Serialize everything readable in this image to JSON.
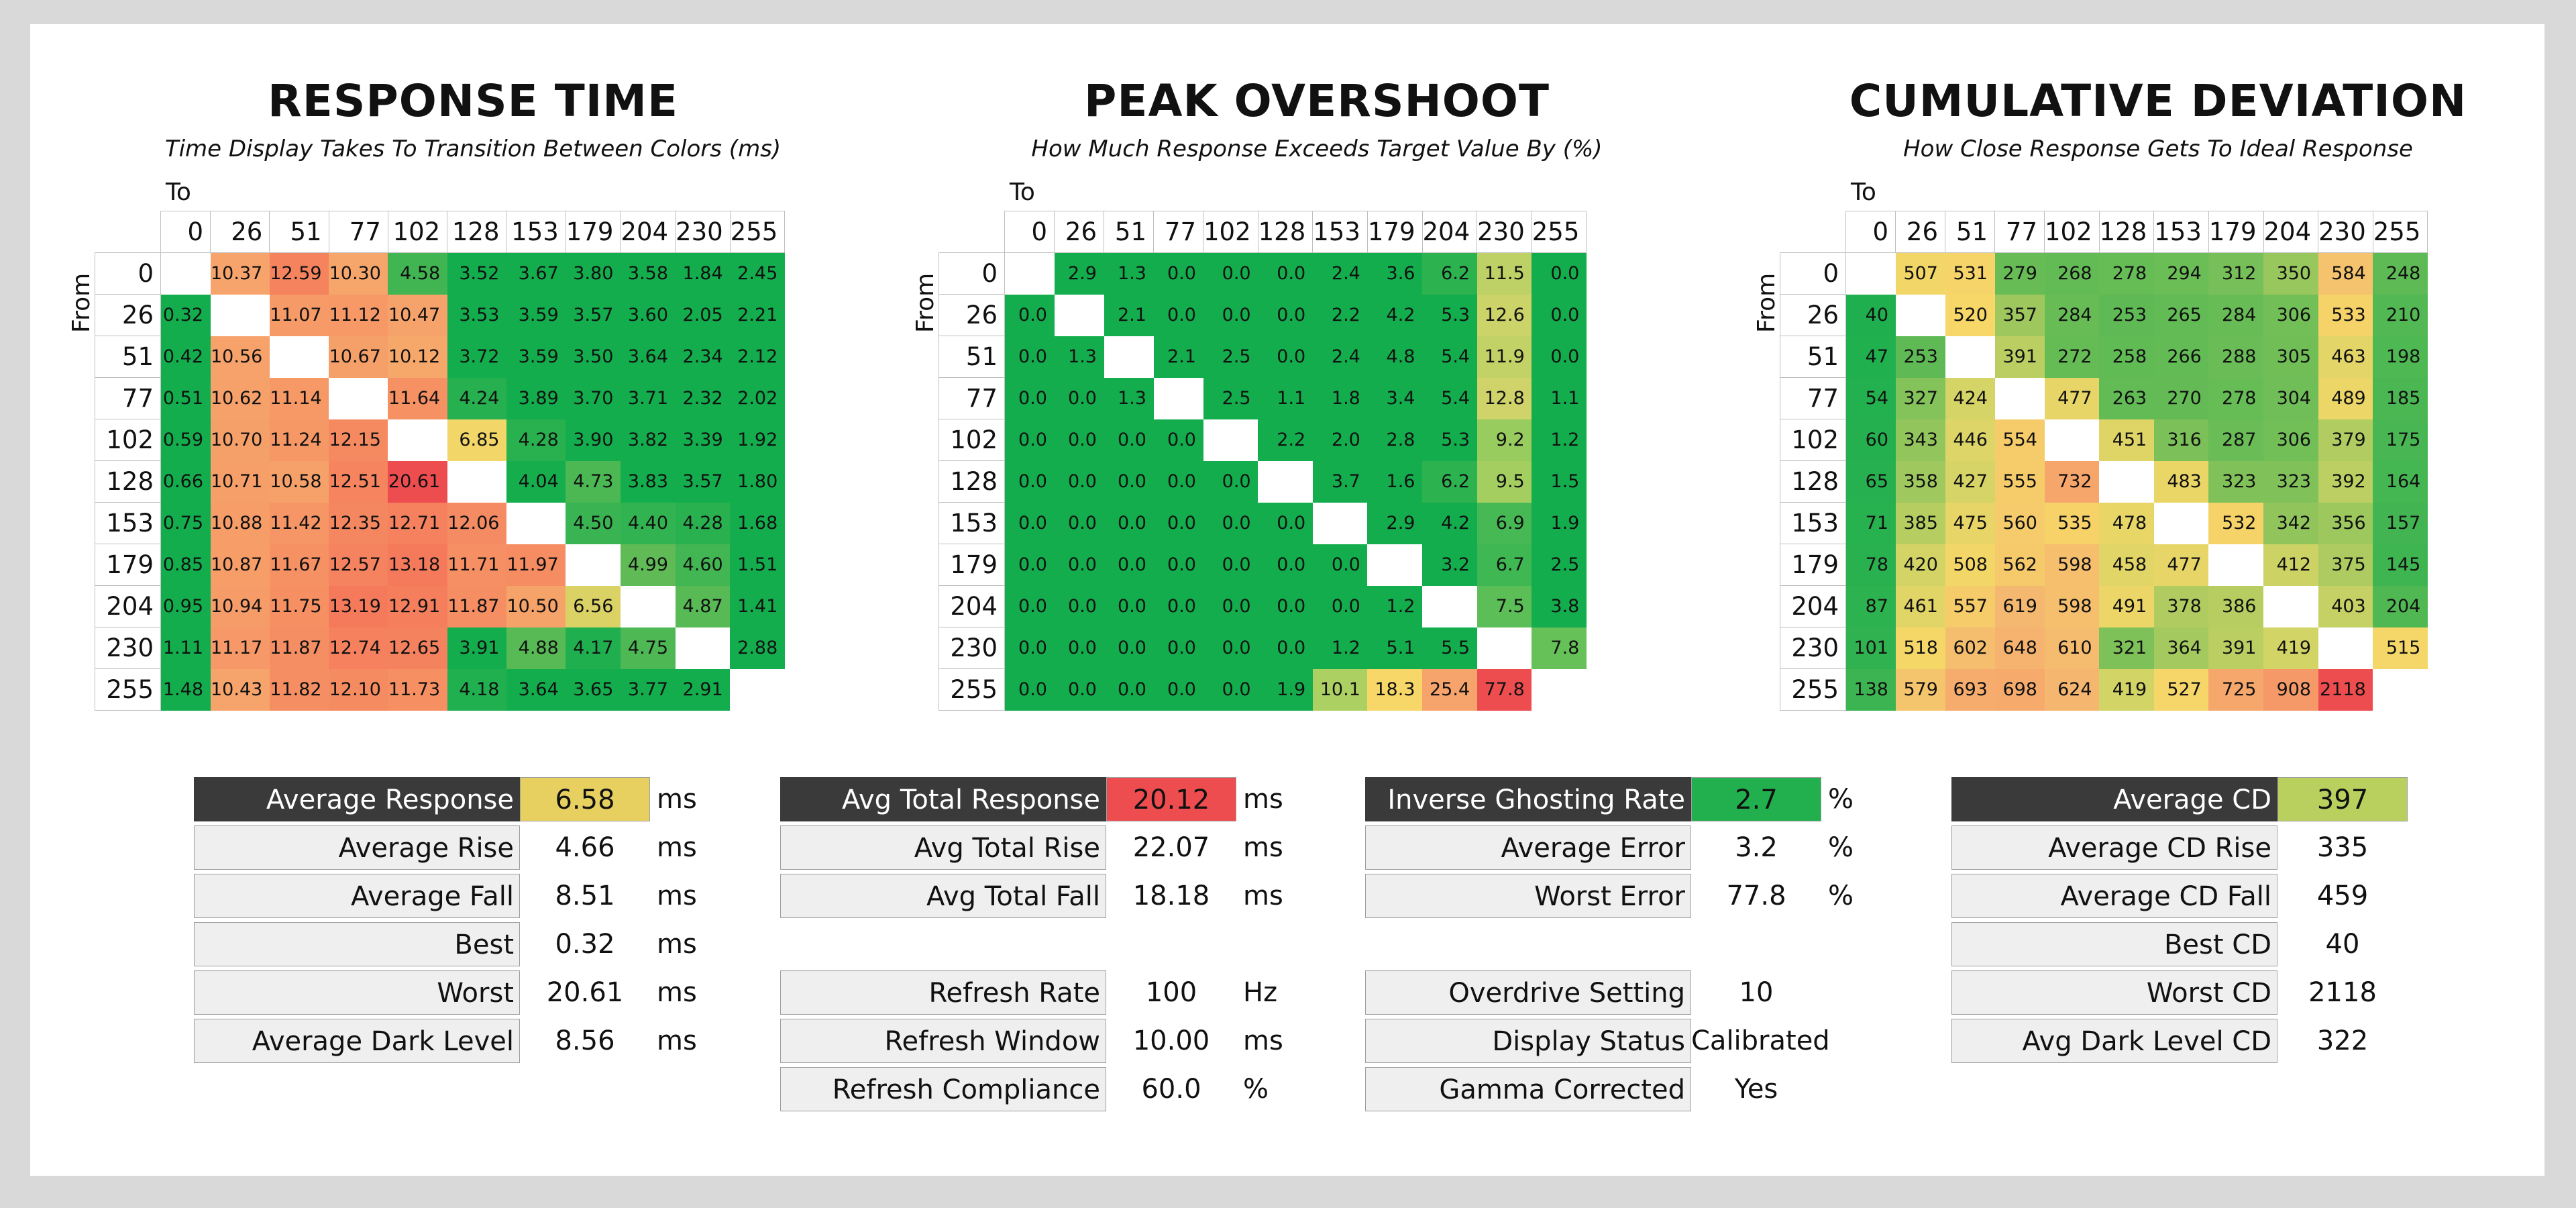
{
  "colors": {
    "green": "#13ad4d",
    "light_green": "#a4cf60",
    "yellow": "#f6d768",
    "orange": "#f6a46b",
    "red": "#ee4d50",
    "dark_label": "#3a3a3a"
  },
  "axis": {
    "to_label": "To",
    "from_label": "From",
    "levels": [
      "0",
      "26",
      "51",
      "77",
      "102",
      "128",
      "153",
      "179",
      "204",
      "230",
      "255"
    ]
  },
  "panels": [
    {
      "id": "response",
      "title": "RESPONSE TIME",
      "subtitle": "Time Display Takes To Transition Between Colors (ms)",
      "matrix": [
        [
          "",
          "10.37",
          "12.59",
          "10.30",
          "4.58",
          "3.52",
          "3.67",
          "3.80",
          "3.58",
          "1.84",
          "2.45"
        ],
        [
          "0.32",
          "",
          "11.07",
          "11.12",
          "10.47",
          "3.53",
          "3.59",
          "3.57",
          "3.60",
          "2.05",
          "2.21"
        ],
        [
          "0.42",
          "10.56",
          "",
          "10.67",
          "10.12",
          "3.72",
          "3.59",
          "3.50",
          "3.64",
          "2.34",
          "2.12"
        ],
        [
          "0.51",
          "10.62",
          "11.14",
          "",
          "11.64",
          "4.24",
          "3.89",
          "3.70",
          "3.71",
          "2.32",
          "2.02"
        ],
        [
          "0.59",
          "10.70",
          "11.24",
          "12.15",
          "",
          "6.85",
          "4.28",
          "3.90",
          "3.82",
          "3.39",
          "1.92"
        ],
        [
          "0.66",
          "10.71",
          "10.58",
          "12.51",
          "20.61",
          "",
          "4.04",
          "4.73",
          "3.83",
          "3.57",
          "1.80"
        ],
        [
          "0.75",
          "10.88",
          "11.42",
          "12.35",
          "12.71",
          "12.06",
          "",
          "4.50",
          "4.40",
          "4.28",
          "1.68"
        ],
        [
          "0.85",
          "10.87",
          "11.67",
          "12.57",
          "13.18",
          "11.71",
          "11.97",
          "",
          "4.99",
          "4.60",
          "1.51"
        ],
        [
          "0.95",
          "10.94",
          "11.75",
          "13.19",
          "12.91",
          "11.87",
          "10.50",
          "6.56",
          "",
          "4.87",
          "1.41"
        ],
        [
          "1.11",
          "11.17",
          "11.87",
          "12.74",
          "12.65",
          "3.91",
          "4.88",
          "4.17",
          "4.75",
          "",
          "2.88"
        ],
        [
          "1.48",
          "10.43",
          "11.82",
          "12.10",
          "11.73",
          "4.18",
          "3.64",
          "3.65",
          "3.77",
          "2.91",
          ""
        ]
      ],
      "stats": [
        {
          "label": "Average Response",
          "value": "6.58",
          "unit": "ms",
          "primary": true,
          "color": "#e7d060"
        },
        {
          "label": "Average Rise",
          "value": "4.66",
          "unit": "ms"
        },
        {
          "label": "Average Fall",
          "value": "8.51",
          "unit": "ms"
        },
        {
          "label": "Best",
          "value": "0.32",
          "unit": "ms"
        },
        {
          "label": "Worst",
          "value": "20.61",
          "unit": "ms"
        },
        {
          "label": "Average Dark Level",
          "value": "8.56",
          "unit": "ms"
        }
      ]
    },
    {
      "id": "overshoot",
      "title": "PEAK OVERSHOOT",
      "subtitle": "How Much Response Exceeds Target Value By (%)",
      "matrix": [
        [
          "",
          "2.9",
          "1.3",
          "0.0",
          "0.0",
          "0.0",
          "2.4",
          "3.6",
          "6.2",
          "11.5",
          "0.0"
        ],
        [
          "0.0",
          "",
          "2.1",
          "0.0",
          "0.0",
          "0.0",
          "2.2",
          "4.2",
          "5.3",
          "12.6",
          "0.0"
        ],
        [
          "0.0",
          "1.3",
          "",
          "2.1",
          "2.5",
          "0.0",
          "2.4",
          "4.8",
          "5.4",
          "11.9",
          "0.0"
        ],
        [
          "0.0",
          "0.0",
          "1.3",
          "",
          "2.5",
          "1.1",
          "1.8",
          "3.4",
          "5.4",
          "12.8",
          "1.1"
        ],
        [
          "0.0",
          "0.0",
          "0.0",
          "0.0",
          "",
          "2.2",
          "2.0",
          "2.8",
          "5.3",
          "9.2",
          "1.2"
        ],
        [
          "0.0",
          "0.0",
          "0.0",
          "0.0",
          "0.0",
          "",
          "3.7",
          "1.6",
          "6.2",
          "9.5",
          "1.5"
        ],
        [
          "0.0",
          "0.0",
          "0.0",
          "0.0",
          "0.0",
          "0.0",
          "",
          "2.9",
          "4.2",
          "6.9",
          "1.9"
        ],
        [
          "0.0",
          "0.0",
          "0.0",
          "0.0",
          "0.0",
          "0.0",
          "0.0",
          "",
          "3.2",
          "6.7",
          "2.5"
        ],
        [
          "0.0",
          "0.0",
          "0.0",
          "0.0",
          "0.0",
          "0.0",
          "0.0",
          "1.2",
          "",
          "7.5",
          "3.8"
        ],
        [
          "0.0",
          "0.0",
          "0.0",
          "0.0",
          "0.0",
          "0.0",
          "1.2",
          "5.1",
          "5.5",
          "",
          "7.8"
        ],
        [
          "0.0",
          "0.0",
          "0.0",
          "0.0",
          "0.0",
          "1.9",
          "10.1",
          "18.3",
          "25.4",
          "77.8",
          ""
        ]
      ],
      "stats": [
        {
          "label": "Avg Total Response",
          "value": "20.12",
          "unit": "ms",
          "primary": true,
          "color": "#ee4d50"
        },
        {
          "label": "Avg Total Rise",
          "value": "22.07",
          "unit": "ms"
        },
        {
          "label": "Avg Total Fall",
          "value": "18.18",
          "unit": "ms"
        },
        {
          "label": "",
          "value": "",
          "unit": "",
          "spacer": true
        },
        {
          "label": "Refresh Rate",
          "value": "100",
          "unit": "Hz"
        },
        {
          "label": "Refresh Window",
          "value": "10.00",
          "unit": "ms"
        },
        {
          "label": "Refresh Compliance",
          "value": "60.0",
          "unit": "%"
        }
      ]
    },
    {
      "id": "ghosting",
      "title": "",
      "subtitle": "",
      "matrix": [],
      "stats": [
        {
          "label": "Inverse Ghosting Rate",
          "value": "2.7",
          "unit": "%",
          "primary": true,
          "color": "#22b04f"
        },
        {
          "label": "Average Error",
          "value": "3.2",
          "unit": "%"
        },
        {
          "label": "Worst Error",
          "value": "77.8",
          "unit": "%"
        },
        {
          "label": "",
          "value": "",
          "unit": "",
          "spacer": true
        },
        {
          "label": "Overdrive Setting",
          "value": "10",
          "unit": ""
        },
        {
          "label": "Display Status",
          "value": "Calibrated",
          "unit": ""
        },
        {
          "label": "Gamma Corrected",
          "value": "Yes",
          "unit": ""
        }
      ]
    },
    {
      "id": "deviation",
      "title": "CUMULATIVE DEVIATION",
      "subtitle": "How Close Response Gets To Ideal Response",
      "matrix": [
        [
          "",
          "507",
          "531",
          "279",
          "268",
          "278",
          "294",
          "312",
          "350",
          "584",
          "248"
        ],
        [
          "40",
          "",
          "520",
          "357",
          "284",
          "253",
          "265",
          "284",
          "306",
          "533",
          "210"
        ],
        [
          "47",
          "253",
          "",
          "391",
          "272",
          "258",
          "266",
          "288",
          "305",
          "463",
          "198"
        ],
        [
          "54",
          "327",
          "424",
          "",
          "477",
          "263",
          "270",
          "278",
          "304",
          "489",
          "185"
        ],
        [
          "60",
          "343",
          "446",
          "554",
          "",
          "451",
          "316",
          "287",
          "306",
          "379",
          "175"
        ],
        [
          "65",
          "358",
          "427",
          "555",
          "732",
          "",
          "483",
          "323",
          "323",
          "392",
          "164"
        ],
        [
          "71",
          "385",
          "475",
          "560",
          "535",
          "478",
          "",
          "532",
          "342",
          "356",
          "157"
        ],
        [
          "78",
          "420",
          "508",
          "562",
          "598",
          "458",
          "477",
          "",
          "412",
          "375",
          "145"
        ],
        [
          "87",
          "461",
          "557",
          "619",
          "598",
          "491",
          "378",
          "386",
          "",
          "403",
          "204"
        ],
        [
          "101",
          "518",
          "602",
          "648",
          "610",
          "321",
          "364",
          "391",
          "419",
          "",
          "515"
        ],
        [
          "138",
          "579",
          "693",
          "698",
          "624",
          "419",
          "527",
          "725",
          "908",
          "2118",
          ""
        ]
      ],
      "stats": [
        {
          "label": "Average CD",
          "value": "397",
          "unit": "",
          "primary": true,
          "color": "#b9cf5e"
        },
        {
          "label": "Average CD Rise",
          "value": "335",
          "unit": ""
        },
        {
          "label": "Average CD Fall",
          "value": "459",
          "unit": ""
        },
        {
          "label": "Best CD",
          "value": "40",
          "unit": ""
        },
        {
          "label": "Worst CD",
          "value": "2118",
          "unit": ""
        },
        {
          "label": "Avg Dark Level CD",
          "value": "322",
          "unit": ""
        }
      ]
    }
  ],
  "chart_data": [
    {
      "type": "heatmap",
      "title": "RESPONSE TIME",
      "subtitle": "Time Display Takes To Transition Between Colors (ms)",
      "xlabel": "To",
      "ylabel": "From",
      "x": [
        0,
        26,
        51,
        77,
        102,
        128,
        153,
        179,
        204,
        230,
        255
      ],
      "y": [
        0,
        26,
        51,
        77,
        102,
        128,
        153,
        179,
        204,
        230,
        255
      ],
      "ref": "panels.0.matrix"
    },
    {
      "type": "heatmap",
      "title": "PEAK OVERSHOOT",
      "subtitle": "How Much Response Exceeds Target Value By (%)",
      "xlabel": "To",
      "ylabel": "From",
      "x": [
        0,
        26,
        51,
        77,
        102,
        128,
        153,
        179,
        204,
        230,
        255
      ],
      "y": [
        0,
        26,
        51,
        77,
        102,
        128,
        153,
        179,
        204,
        230,
        255
      ],
      "ref": "panels.1.matrix"
    },
    {
      "type": "heatmap",
      "title": "CUMULATIVE DEVIATION",
      "subtitle": "How Close Response Gets To Ideal Response",
      "xlabel": "To",
      "ylabel": "From",
      "x": [
        0,
        26,
        51,
        77,
        102,
        128,
        153,
        179,
        204,
        230,
        255
      ],
      "y": [
        0,
        26,
        51,
        77,
        102,
        128,
        153,
        179,
        204,
        230,
        255
      ],
      "ref": "panels.3.matrix"
    }
  ]
}
